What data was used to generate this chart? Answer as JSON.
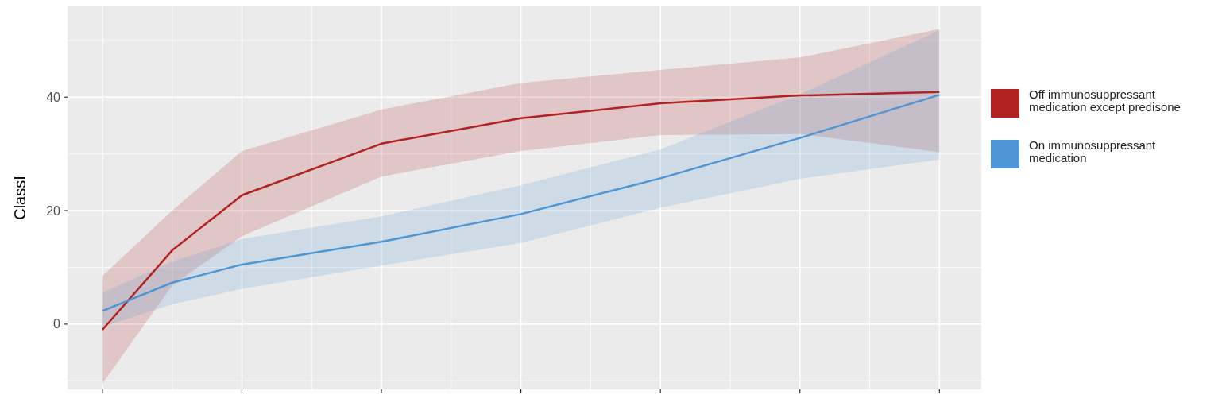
{
  "chart_data": {
    "type": "line",
    "ylabel": "ClassI",
    "ylim": [
      -11.5,
      56
    ],
    "categories": [
      null,
      null,
      null,
      null,
      null,
      null,
      null,
      null,
      null,
      null,
      null,
      null,
      null
    ],
    "yticks": [
      0,
      20,
      40
    ],
    "grid": true,
    "legend": "right",
    "tick_labels": "y",
    "series": [
      {
        "name": "Off immunosuppressant medication except predisone",
        "color": "#b22222",
        "values": [
          -1,
          13,
          22.7,
          null,
          31.8,
          null,
          36.3,
          null,
          38.9,
          null,
          40.3,
          null,
          40.9
        ],
        "lower": [
          -10.5,
          6.8,
          15.5,
          null,
          26,
          null,
          30.5,
          null,
          33.3,
          null,
          33.5,
          null,
          30.3
        ],
        "upper": [
          8.5,
          20,
          30.5,
          null,
          37.8,
          null,
          42.5,
          null,
          44.8,
          null,
          47,
          null,
          52
        ]
      },
      {
        "name": "On immunosuppressant medication",
        "color": "#4f94d4",
        "values": [
          2.3,
          7.3,
          10.5,
          null,
          14.5,
          null,
          19.4,
          null,
          25.7,
          null,
          32.8,
          null,
          40.4
        ],
        "lower": [
          -0.5,
          3.5,
          6.2,
          null,
          10.3,
          null,
          14.3,
          null,
          20.5,
          null,
          25.6,
          null,
          29
        ],
        "upper": [
          5.5,
          11,
          15,
          null,
          19,
          null,
          24.5,
          null,
          30.8,
          null,
          40.5,
          null,
          51.8
        ]
      }
    ]
  }
}
